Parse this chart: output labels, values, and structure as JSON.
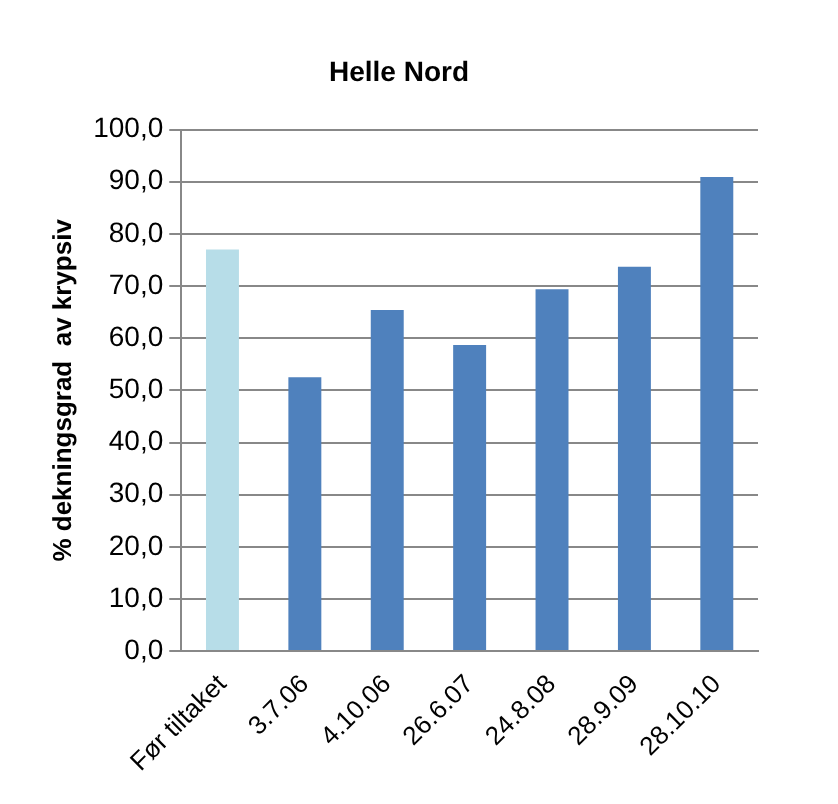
{
  "chart_data": {
    "type": "bar",
    "title": "Helle Nord",
    "ylabel": "% dekningsgrad  av krypsiv",
    "categories": [
      "Før tiltaket",
      "3.7.06",
      "4.10.06",
      "26.6.07",
      "24.8.08",
      "28.9.09",
      "28.10.10"
    ],
    "values": [
      77.0,
      52.5,
      65.4,
      58.7,
      69.4,
      73.7,
      90.9
    ],
    "colors": [
      "#b7dde8",
      "#4f81bd",
      "#4f81bd",
      "#4f81bd",
      "#4f81bd",
      "#4f81bd",
      "#4f81bd"
    ],
    "ylim": [
      0,
      100
    ],
    "yticks": [
      {
        "value": 0,
        "label": "0,0"
      },
      {
        "value": 10,
        "label": "10,0"
      },
      {
        "value": 20,
        "label": "20,0"
      },
      {
        "value": 30,
        "label": "30,0"
      },
      {
        "value": 40,
        "label": "40,0"
      },
      {
        "value": 50,
        "label": "50,0"
      },
      {
        "value": 60,
        "label": "60,0"
      },
      {
        "value": 70,
        "label": "70,0"
      },
      {
        "value": 80,
        "label": "80,0"
      },
      {
        "value": 90,
        "label": "90,0"
      },
      {
        "value": 100,
        "label": "100,0"
      }
    ],
    "grid": "y",
    "legend": false
  }
}
